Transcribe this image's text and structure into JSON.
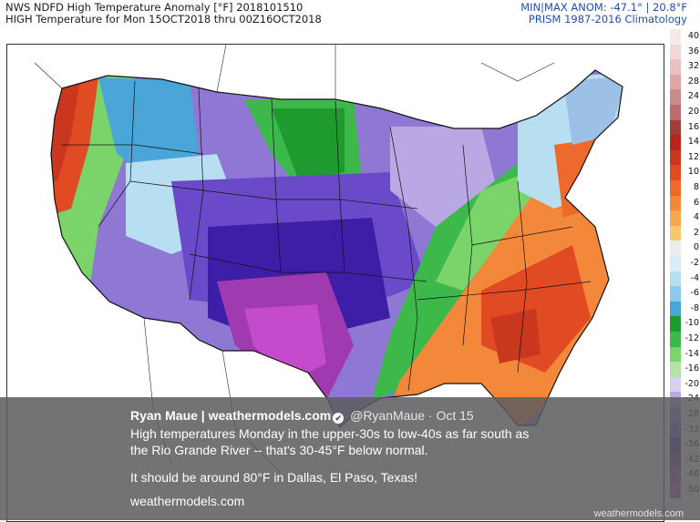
{
  "header": {
    "title_line1": "NWS NDFD High Temperature Anomaly [°F] 2018101510",
    "title_line2": "HIGH Temperature for Mon 15OCT2018 thru 00Z16OCT2018",
    "minmax": "MIN|MAX ANOM: -47.1° | 20.8°F",
    "climatology": "PRISM 1987-2016 Climatology"
  },
  "legend": {
    "labels": [
      "40",
      "36",
      "32",
      "28",
      "24",
      "20",
      "16",
      "14",
      "12",
      "10",
      "8",
      "6",
      "4",
      "2",
      "0",
      "-2",
      "-4",
      "-6",
      "-8",
      "-10",
      "-12",
      "-14",
      "-16",
      "-20",
      "-24",
      "-28",
      "-32",
      "-36",
      "-42",
      "-46",
      "-50"
    ],
    "colors": [
      "#f6e9ea",
      "#f2d9d9",
      "#e9c1c0",
      "#dca7a6",
      "#c98a89",
      "#b86e6d",
      "#9e4039",
      "#b3281a",
      "#c9371e",
      "#e04b24",
      "#ee6a2c",
      "#f4883a",
      "#f6a850",
      "#f8c870",
      "#ececec",
      "#dcecf6",
      "#b8def2",
      "#8cc9ee",
      "#4aa6d8",
      "#1e9a2e",
      "#3db84a",
      "#7ad46a",
      "#b2e4a6",
      "#d7d1ef",
      "#b9a8e4",
      "#9278d8",
      "#6a4ac8",
      "#3c1fa6",
      "#7a2c9c",
      "#a03ab0",
      "#c44ccc"
    ]
  },
  "tweet": {
    "name": "Ryan Maue | weathermodels.com",
    "badge": "✔",
    "handle": "@RyanMaue",
    "date": "· Oct 15",
    "text_line1": "High temperatures Monday in the upper-30s to low-40s as far south as",
    "text_line2": "the Rio Grande River -- that's 30-45°F below normal.",
    "text_line3": "It should be around 80°F in Dallas, El Paso, Texas!",
    "link": "weathermodels.com",
    "watermark": "weathermodels.com"
  }
}
